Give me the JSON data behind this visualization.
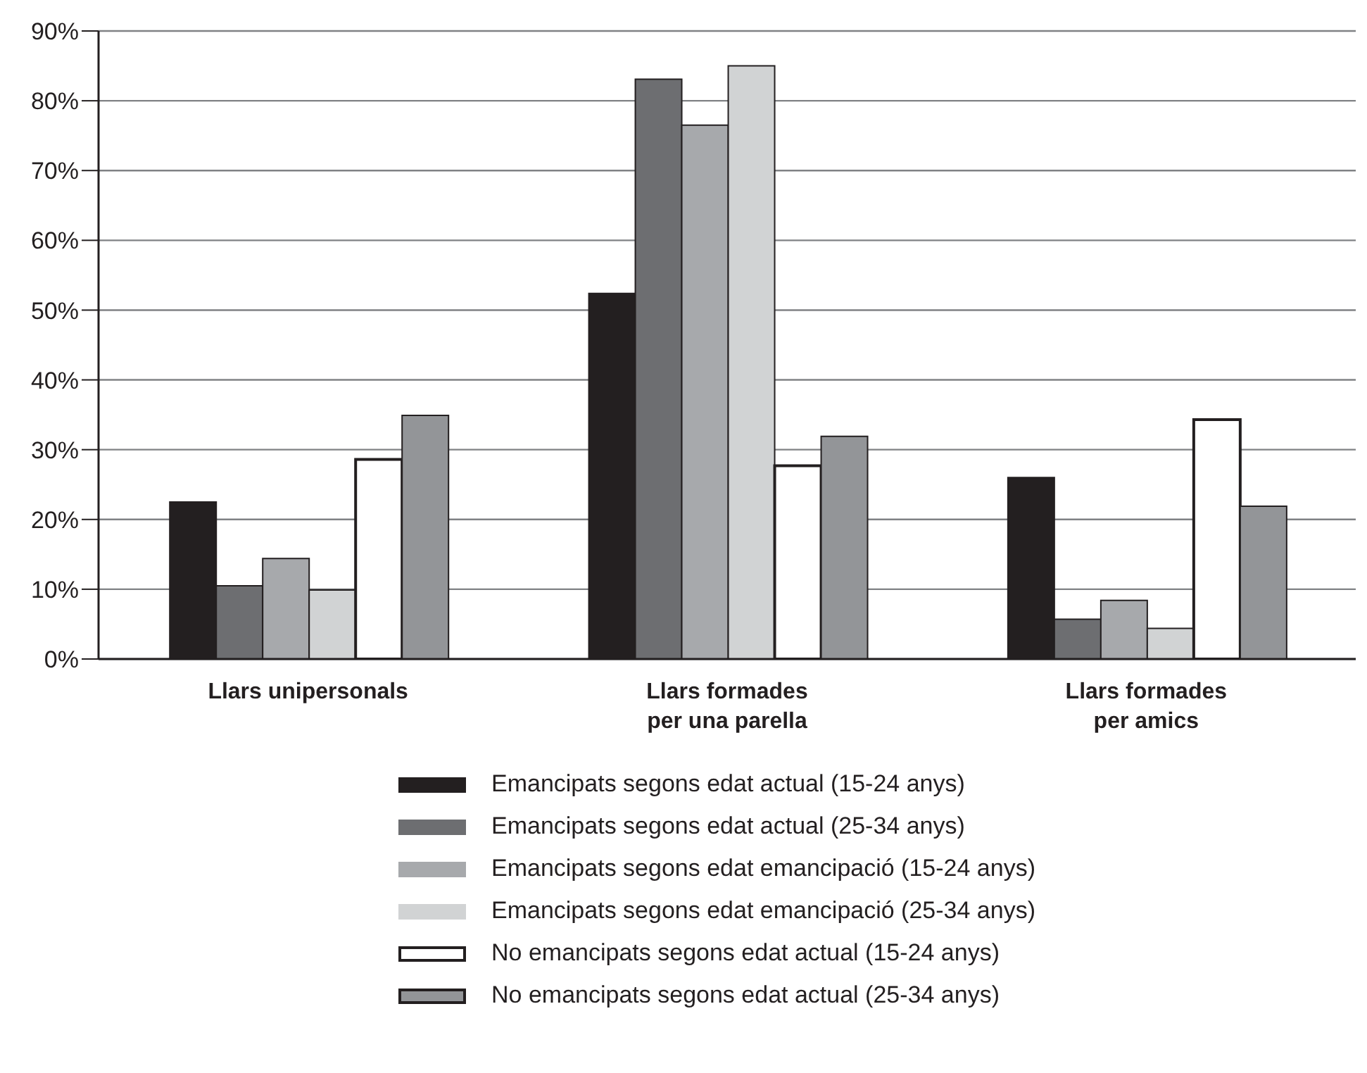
{
  "chart_data": {
    "type": "bar",
    "categories": [
      "Llars unipersonals",
      "Llars formades per una parella",
      "Llars formades per amics"
    ],
    "series": [
      {
        "name": "Emancipats segons edat actual (15-24 anys)",
        "color": "#231f20",
        "values": [
          22.5,
          52.4,
          26.0
        ]
      },
      {
        "name": "Emancipats segons edat actual (25-34 anys)",
        "color": "#6d6e71",
        "values": [
          10.5,
          83.1,
          5.7
        ]
      },
      {
        "name": "Emancipats segons edat emancipació (15-24 anys)",
        "color": "#a7a9ac",
        "values": [
          14.4,
          76.5,
          8.4
        ]
      },
      {
        "name": "Emancipats segons edat emancipació (25-34 anys)",
        "color": "#d1d3d4",
        "values": [
          9.9,
          85.0,
          4.4
        ]
      },
      {
        "name": "No emancipats segons edat actual (15-24 anys)",
        "color": "#ffffff",
        "values": [
          28.6,
          27.7,
          34.3
        ]
      },
      {
        "name": "No emancipats segons edat actual (25-34 anys)",
        "color": "#939598",
        "values": [
          34.9,
          31.9,
          21.9
        ]
      }
    ],
    "ylim": [
      0,
      90
    ],
    "yticks": [
      {
        "value": 0,
        "label": "0%"
      },
      {
        "value": 10,
        "label": "10%"
      },
      {
        "value": 20,
        "label": "20%"
      },
      {
        "value": 30,
        "label": "30%"
      },
      {
        "value": 40,
        "label": "40%"
      },
      {
        "value": 50,
        "label": "50%"
      },
      {
        "value": 60,
        "label": "60%"
      },
      {
        "value": 70,
        "label": "70%"
      },
      {
        "value": 80,
        "label": "80%"
      },
      {
        "value": 90,
        "label": "90%"
      }
    ],
    "grid": "y",
    "legend": "bottom"
  }
}
